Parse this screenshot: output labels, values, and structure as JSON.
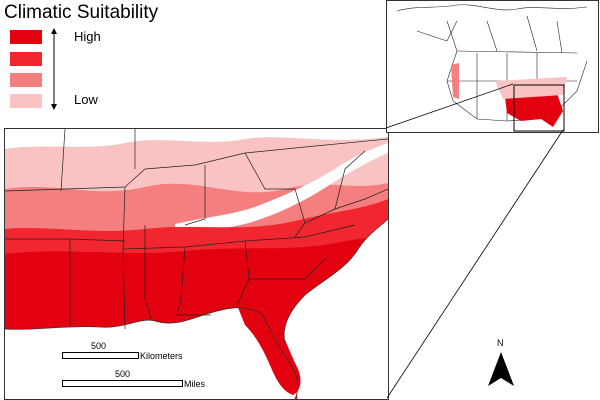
{
  "legend": {
    "title": "Climatic Suitability",
    "high_label": "High",
    "low_label": "Low",
    "classes": [
      {
        "level": "highest",
        "color": "#e3000f"
      },
      {
        "level": "high",
        "color": "#f1262f"
      },
      {
        "level": "medium",
        "color": "#f57e7e"
      },
      {
        "level": "low",
        "color": "#f9c3c3"
      }
    ]
  },
  "scale_bars": {
    "kilometers": {
      "value": "500",
      "unit": "Kilometers"
    },
    "miles": {
      "value": "500",
      "unit": "Miles"
    }
  },
  "north_arrow": {
    "label": "N"
  }
}
